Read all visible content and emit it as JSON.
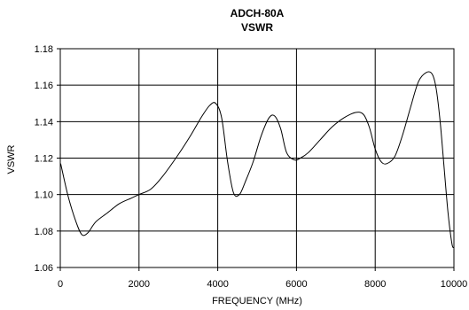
{
  "chart_data": {
    "type": "line",
    "title": "ADCH-80A",
    "subtitle": "VSWR",
    "xlabel": "FREQUENCY (MHz)",
    "ylabel": "VSWR",
    "xlim": [
      0,
      10000
    ],
    "ylim": [
      1.06,
      1.18
    ],
    "xticks": [
      "0",
      "2000",
      "4000",
      "6000",
      "8000",
      "10000"
    ],
    "yticks": [
      "1.06",
      "1.08",
      "1.10",
      "1.12",
      "1.14",
      "1.16",
      "1.18"
    ],
    "grid": true,
    "series": [
      {
        "x": [
          10,
          200,
          400,
          550,
          700,
          900,
          1200,
          1500,
          1800,
          2000,
          2300,
          2600,
          3000,
          3300,
          3600,
          3800,
          3950,
          4100,
          4250,
          4400,
          4550,
          4700,
          4900,
          5100,
          5300,
          5450,
          5600,
          5750,
          5950,
          6100,
          6300,
          6600,
          6900,
          7200,
          7500,
          7700,
          7850,
          8000,
          8150,
          8300,
          8500,
          8700,
          8900,
          9100,
          9300,
          9450,
          9550,
          9650,
          9750,
          9850,
          9950,
          10000
        ],
        "y": [
          1.117,
          1.099,
          1.085,
          1.078,
          1.079,
          1.085,
          1.09,
          1.095,
          1.098,
          1.1,
          1.103,
          1.11,
          1.122,
          1.132,
          1.143,
          1.149,
          1.15,
          1.142,
          1.118,
          1.101,
          1.1,
          1.107,
          1.118,
          1.132,
          1.142,
          1.143,
          1.136,
          1.123,
          1.119,
          1.12,
          1.123,
          1.13,
          1.137,
          1.142,
          1.145,
          1.144,
          1.137,
          1.125,
          1.118,
          1.117,
          1.121,
          1.133,
          1.148,
          1.162,
          1.167,
          1.166,
          1.158,
          1.14,
          1.115,
          1.09,
          1.073,
          1.071
        ]
      }
    ]
  }
}
